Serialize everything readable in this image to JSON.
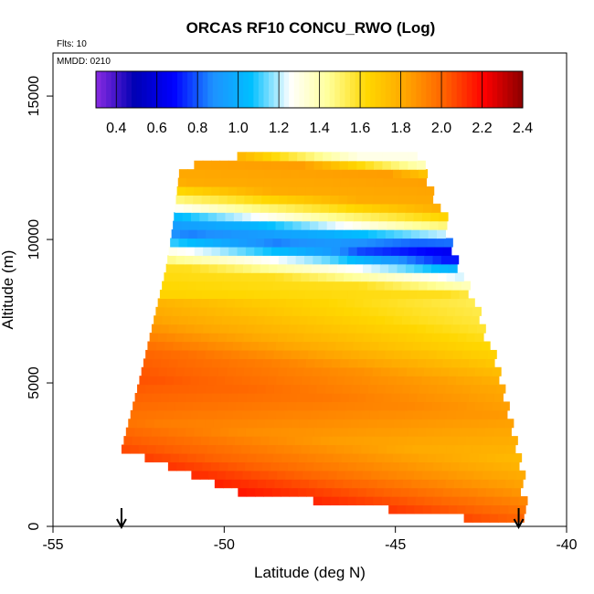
{
  "chart_data": {
    "type": "heatmap",
    "title": "ORCAS RF10 CONCU_RWO (Log)",
    "annotations": [
      "Flts: 10",
      "MMDD: 0210"
    ],
    "xlabel": "Latitude (deg N)",
    "ylabel": "Altitude (m)",
    "xlim": [
      -55,
      -40
    ],
    "ylim": [
      0,
      16500
    ],
    "x_ticks": [
      -55,
      -50,
      -45,
      -40
    ],
    "x_tick_labels": [
      "-55",
      "-50",
      "-45",
      "-40"
    ],
    "y_ticks": [
      0,
      5000,
      10000,
      15000
    ],
    "y_tick_labels": [
      "0",
      "5000",
      "10000",
      "15000"
    ],
    "grid": false,
    "colorbar": {
      "placement": "top-inside",
      "range": [
        0.3,
        2.4
      ],
      "ticks": [
        0.4,
        0.6,
        0.8,
        1.0,
        1.2,
        1.4,
        1.6,
        1.8,
        2.0,
        2.2,
        2.4
      ],
      "tick_labels": [
        "0.4",
        "0.6",
        "0.8",
        "1.0",
        "1.2",
        "1.4",
        "1.6",
        "1.8",
        "2.0",
        "2.2",
        "2.4"
      ],
      "colors": [
        "#8a2be2",
        "#0000b4",
        "#0000ff",
        "#1e90ff",
        "#00bfff",
        "#ffffff",
        "#ffff99",
        "#ffd700",
        "#ffa500",
        "#ff6000",
        "#ff0000",
        "#8b0000"
      ]
    },
    "markers": [
      {
        "type": "arrow-down",
        "x": -53.0
      },
      {
        "type": "arrow-down",
        "x": -41.4
      }
    ],
    "field": {
      "lat_range": [
        -53.0,
        -41.3
      ],
      "alt_range": [
        300,
        13000
      ],
      "cell_width_deg": 0.25,
      "cell_height_m": 300,
      "coverage": [
        {
          "alt": 300,
          "lat_min": -43.0,
          "lat_max": -41.3
        },
        {
          "alt": 1200,
          "lat_min": -49.6,
          "lat_max": -41.4
        },
        {
          "alt": 2700,
          "lat_min": -53.0,
          "lat_max": -41.5
        },
        {
          "alt": 5000,
          "lat_min": -52.5,
          "lat_max": -42.0
        },
        {
          "alt": 7500,
          "lat_min": -52.0,
          "lat_max": -42.7
        },
        {
          "alt": 9000,
          "lat_min": -51.7,
          "lat_max": -43.3
        },
        {
          "alt": 10500,
          "lat_min": -51.5,
          "lat_max": -43.6
        },
        {
          "alt": 12500,
          "lat_min": -51.3,
          "lat_max": -44.3
        },
        {
          "alt": 13000,
          "lat_min": -49.2,
          "lat_max": -44.5
        }
      ],
      "value_profile": [
        {
          "alt": 0,
          "value": 2.25
        },
        {
          "alt": 1000,
          "value": 2.1
        },
        {
          "alt": 2000,
          "value": 1.95
        },
        {
          "alt": 3000,
          "value": 1.85
        },
        {
          "alt": 4500,
          "value": 1.95
        },
        {
          "alt": 5500,
          "value": 1.9
        },
        {
          "alt": 6500,
          "value": 1.75
        },
        {
          "alt": 7500,
          "value": 1.65
        },
        {
          "alt": 8500,
          "value": 1.6
        },
        {
          "alt": 9200,
          "value": 1.2
        },
        {
          "alt": 9700,
          "value": 0.85
        },
        {
          "alt": 10200,
          "value": 1.0
        },
        {
          "alt": 10800,
          "value": 1.45
        },
        {
          "alt": 11500,
          "value": 1.8
        },
        {
          "alt": 12500,
          "value": 1.85
        },
        {
          "alt": 13000,
          "value": 1.3
        }
      ]
    }
  }
}
